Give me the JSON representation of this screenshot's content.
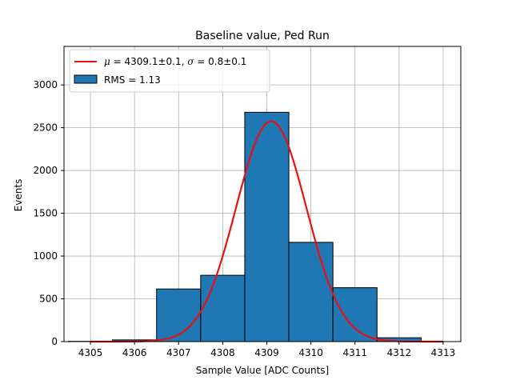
{
  "chart_data": {
    "type": "bar",
    "title": "Baseline value, Ped Run",
    "xlabel": "Sample Value [ADC Counts]",
    "ylabel": "Events",
    "xlim": [
      4304.4,
      4313.4
    ],
    "ylim": [
      0,
      3450
    ],
    "xticks": [
      4305,
      4306,
      4307,
      4308,
      4309,
      4310,
      4311,
      4312,
      4313
    ],
    "yticks": [
      0,
      500,
      1000,
      1500,
      2000,
      2500,
      3000
    ],
    "grid": true,
    "legend_position": "top-left",
    "histogram": {
      "name": "RMS = 1.13",
      "bin_edges": [
        4304.5,
        4305.5,
        4306.5,
        4307.5,
        4308.5,
        4309.5,
        4310.5,
        4311.5,
        4312.5
      ],
      "counts": [
        3,
        20,
        615,
        775,
        2680,
        1160,
        630,
        45
      ],
      "color": "#1f77b4",
      "edge_color": "#000000"
    },
    "fit": {
      "legend_prefix_mu": "μ",
      "legend_mu_value": " = 4309.1±0.1, ",
      "legend_prefix_sigma": "σ",
      "legend_sigma_value": " = 0.8±0.1",
      "mu": 4309.1,
      "sigma": 0.8,
      "amplitude": 2575,
      "x_range": [
        4305,
        4313
      ],
      "color": "#e8110f"
    }
  }
}
